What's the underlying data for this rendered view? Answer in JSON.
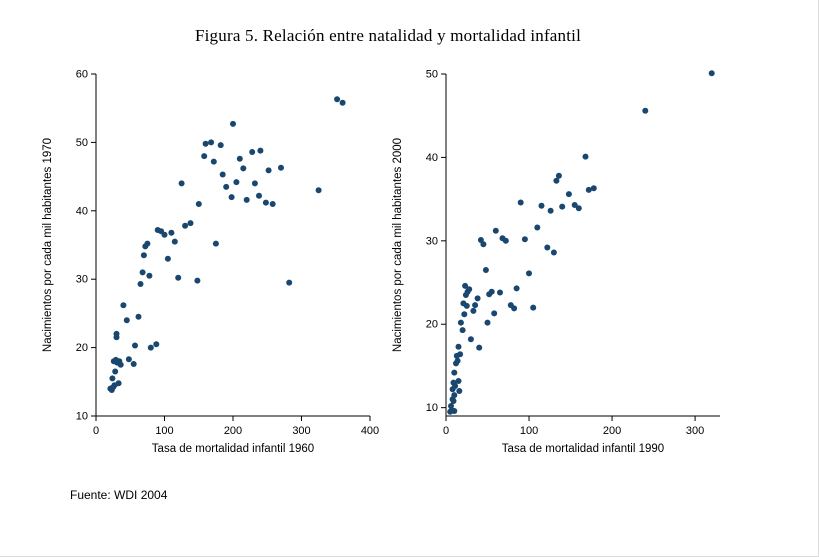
{
  "figure": {
    "title": "Figura 5. Relación entre natalidad y mortalidad infantil",
    "source": "Fuente: WDI 2004"
  },
  "chart_data": [
    {
      "type": "scatter",
      "title": "",
      "xlabel": "Tasa de mortalidad infantil 1960",
      "ylabel": "Nacimientos por cada mil habitantes 1970",
      "xlim": [
        0,
        400
      ],
      "ylim": [
        10,
        60
      ],
      "xticks": [
        0,
        100,
        200,
        300,
        400
      ],
      "yticks": [
        10,
        20,
        30,
        40,
        50,
        60
      ],
      "grid": false,
      "legend": false,
      "marker_color": "#1a476f",
      "points": [
        [
          21,
          14
        ],
        [
          23,
          13.8
        ],
        [
          24,
          15.5
        ],
        [
          25,
          14.2
        ],
        [
          26,
          18
        ],
        [
          27,
          14.5
        ],
        [
          28,
          16.5
        ],
        [
          29,
          18.2
        ],
        [
          30,
          21.5
        ],
        [
          30,
          22
        ],
        [
          31,
          17.8
        ],
        [
          33,
          14.8
        ],
        [
          34,
          18
        ],
        [
          36,
          17.5
        ],
        [
          40,
          26.2
        ],
        [
          45,
          24
        ],
        [
          48,
          18.3
        ],
        [
          55,
          17.6
        ],
        [
          57,
          20.3
        ],
        [
          62,
          24.5
        ],
        [
          65,
          29.3
        ],
        [
          68,
          31
        ],
        [
          70,
          33.5
        ],
        [
          72,
          34.8
        ],
        [
          75,
          35.2
        ],
        [
          78,
          30.5
        ],
        [
          80,
          20
        ],
        [
          88,
          20.5
        ],
        [
          90,
          37.2
        ],
        [
          95,
          37
        ],
        [
          100,
          36.5
        ],
        [
          105,
          33
        ],
        [
          110,
          36.8
        ],
        [
          115,
          35.5
        ],
        [
          120,
          30.2
        ],
        [
          125,
          44
        ],
        [
          130,
          37.8
        ],
        [
          138,
          38.2
        ],
        [
          148,
          29.8
        ],
        [
          150,
          41
        ],
        [
          158,
          48
        ],
        [
          160,
          49.8
        ],
        [
          168,
          50
        ],
        [
          172,
          47.2
        ],
        [
          175,
          35.2
        ],
        [
          182,
          49.6
        ],
        [
          185,
          45.3
        ],
        [
          190,
          43.5
        ],
        [
          198,
          42
        ],
        [
          200,
          52.7
        ],
        [
          205,
          44.2
        ],
        [
          210,
          47.6
        ],
        [
          215,
          46.2
        ],
        [
          220,
          41.6
        ],
        [
          228,
          48.6
        ],
        [
          232,
          44
        ],
        [
          238,
          42.2
        ],
        [
          240,
          48.8
        ],
        [
          248,
          41.2
        ],
        [
          252,
          45.9
        ],
        [
          258,
          41
        ],
        [
          270,
          46.3
        ],
        [
          282,
          29.5
        ],
        [
          325,
          43
        ],
        [
          352,
          56.3
        ],
        [
          360,
          55.8
        ]
      ]
    },
    {
      "type": "scatter",
      "title": "",
      "xlabel": "Tasa de mortalidad infantil 1990",
      "ylabel": "Nacimientos por cada mil habitantes 2000",
      "xlim": [
        0,
        330
      ],
      "ylim": [
        9,
        50
      ],
      "xticks": [
        0,
        100,
        200,
        300
      ],
      "yticks": [
        10,
        20,
        30,
        40,
        50
      ],
      "grid": false,
      "legend": false,
      "marker_color": "#1a476f",
      "points": [
        [
          5,
          9.5
        ],
        [
          6,
          10.2
        ],
        [
          7,
          9.7
        ],
        [
          8,
          11
        ],
        [
          8,
          12.2
        ],
        [
          9,
          10.8
        ],
        [
          9,
          13
        ],
        [
          10,
          9.6
        ],
        [
          10,
          11.5
        ],
        [
          10,
          14.2
        ],
        [
          11,
          12.6
        ],
        [
          12,
          15.3
        ],
        [
          13,
          16.2
        ],
        [
          14,
          15.6
        ],
        [
          15,
          13.2
        ],
        [
          15,
          17.3
        ],
        [
          16,
          12
        ],
        [
          17,
          16.4
        ],
        [
          18,
          20.2
        ],
        [
          20,
          19.3
        ],
        [
          21,
          22.5
        ],
        [
          22,
          21.2
        ],
        [
          23,
          24.6
        ],
        [
          24,
          23.5
        ],
        [
          25,
          22.2
        ],
        [
          26,
          23.9
        ],
        [
          28,
          24.2
        ],
        [
          30,
          18.2
        ],
        [
          33,
          21.6
        ],
        [
          35,
          22.3
        ],
        [
          38,
          23.1
        ],
        [
          40,
          17.2
        ],
        [
          42,
          30.1
        ],
        [
          45,
          29.6
        ],
        [
          48,
          26.5
        ],
        [
          50,
          20.2
        ],
        [
          52,
          23.6
        ],
        [
          55,
          23.9
        ],
        [
          58,
          21.3
        ],
        [
          60,
          31.2
        ],
        [
          65,
          23.8
        ],
        [
          68,
          30.3
        ],
        [
          72,
          30
        ],
        [
          78,
          22.3
        ],
        [
          82,
          21.9
        ],
        [
          85,
          24.3
        ],
        [
          90,
          34.6
        ],
        [
          95,
          30.2
        ],
        [
          100,
          26.1
        ],
        [
          105,
          22
        ],
        [
          110,
          31.6
        ],
        [
          115,
          34.2
        ],
        [
          122,
          29.2
        ],
        [
          126,
          33.6
        ],
        [
          130,
          28.6
        ],
        [
          133,
          37.2
        ],
        [
          136,
          37.8
        ],
        [
          140,
          34.1
        ],
        [
          148,
          35.6
        ],
        [
          155,
          34.3
        ],
        [
          160,
          33.9
        ],
        [
          168,
          40.1
        ],
        [
          172,
          36.1
        ],
        [
          178,
          36.3
        ],
        [
          240,
          45.6
        ],
        [
          320,
          50.1
        ]
      ]
    }
  ]
}
